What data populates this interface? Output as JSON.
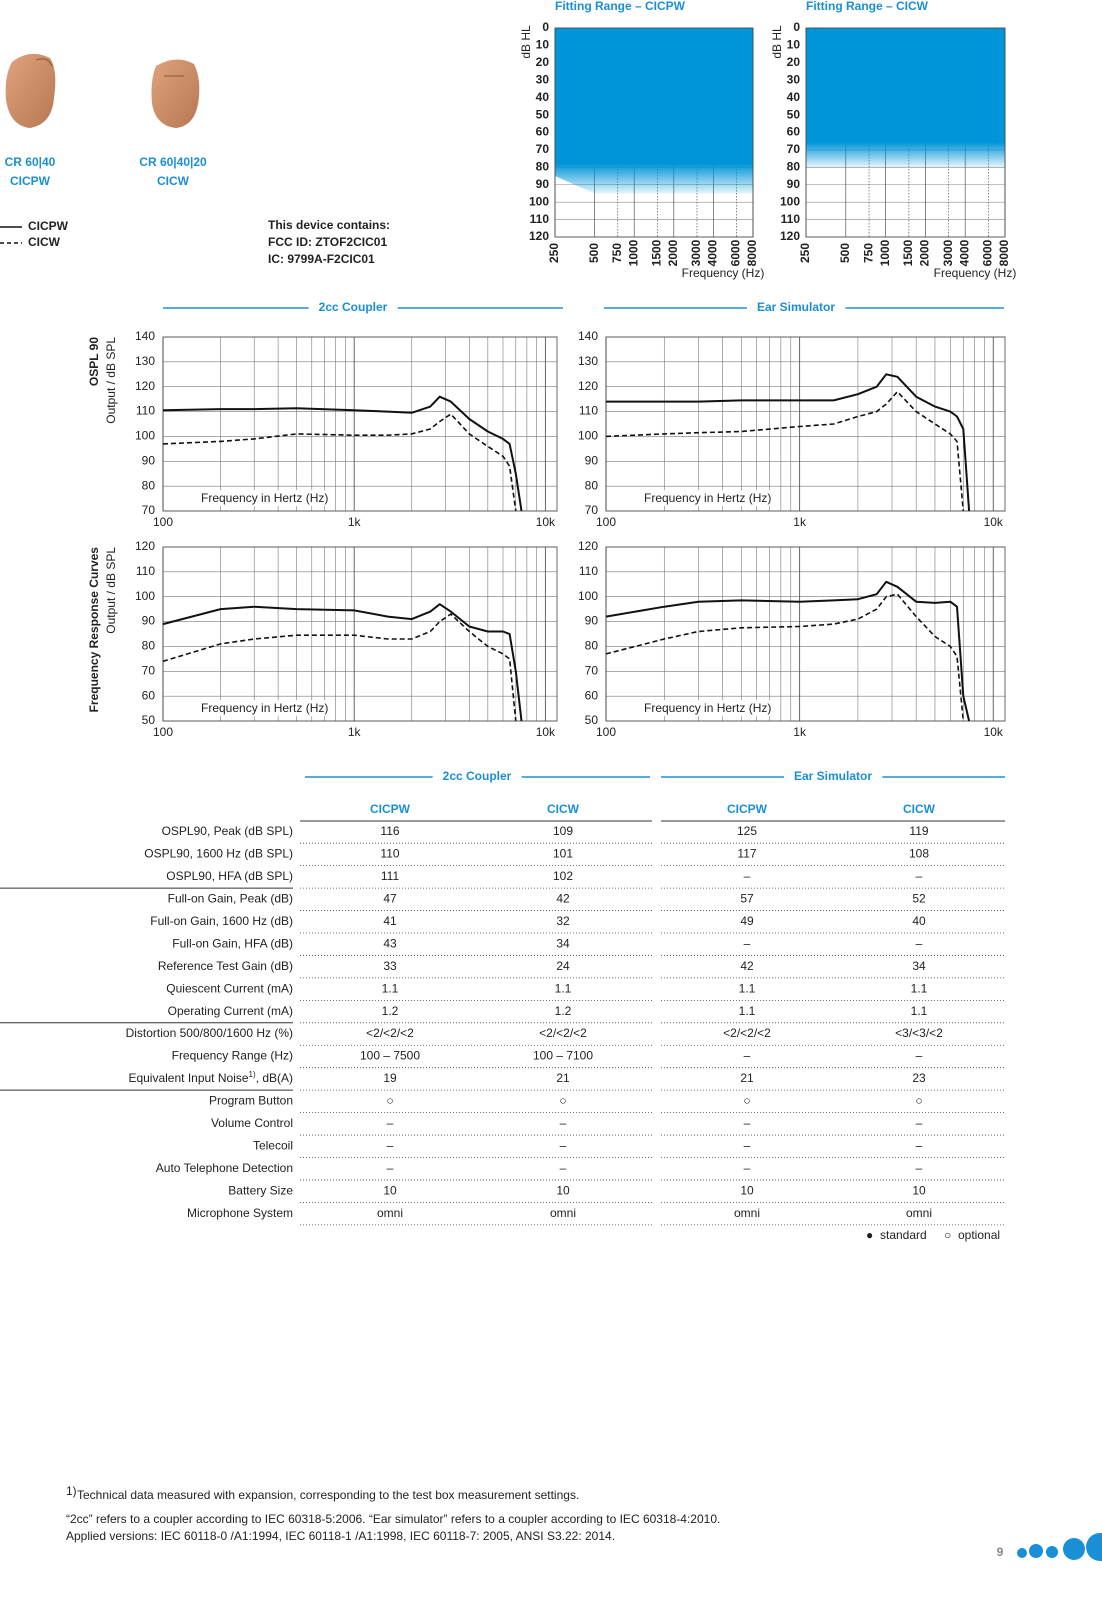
{
  "products": [
    {
      "model": "CR 60|40",
      "name": "CICPW"
    },
    {
      "model": "CR 60|40|20",
      "name": "CICW"
    }
  ],
  "legend": [
    {
      "name": "CICPW",
      "style": "solid"
    },
    {
      "name": "CICW",
      "style": "dashed"
    }
  ],
  "device_info": [
    "This device contains:",
    "FCC ID: ZTOF2CIC01",
    "IC: 9799A-F2CIC01"
  ],
  "curve_sections": [
    "2cc Coupler",
    "Ear Simulator"
  ],
  "curve_rows": [
    {
      "title": "OSPL 90",
      "axis": "Output / dB SPL"
    },
    {
      "title": "Frequency Response Curves",
      "axis": "Output / dB SPL"
    }
  ],
  "chart_data": [
    {
      "type": "area",
      "title": "Fitting Range – CICPW",
      "ylabel": "dB HL",
      "xlabel": "Frequency (Hz)",
      "xscale": "log",
      "y_inverted": true,
      "color": "#0095d9",
      "x": [
        250,
        500,
        750,
        1000,
        1500,
        2000,
        3000,
        4000,
        6000,
        8000
      ],
      "values": [
        85,
        95,
        95,
        95,
        95,
        95,
        95,
        95,
        95,
        95
      ],
      "xlim": [
        250,
        8000
      ],
      "xticks": [
        250,
        500,
        750,
        1000,
        1500,
        2000,
        3000,
        4000,
        6000,
        8000
      ],
      "ylim": [
        0,
        120
      ],
      "yticks": [
        0,
        10,
        20,
        30,
        40,
        50,
        60,
        70,
        80,
        90,
        100,
        110,
        120
      ],
      "grid": true
    },
    {
      "type": "area",
      "title": "Fitting Range – CICW",
      "ylabel": "dB HL",
      "xlabel": "Frequency (Hz)",
      "xscale": "log",
      "y_inverted": true,
      "color": "#0095d9",
      "x": [
        250,
        500,
        750,
        1000,
        1500,
        2000,
        3000,
        4000,
        6000,
        8000
      ],
      "values": [
        80,
        80,
        80,
        80,
        80,
        80,
        80,
        80,
        80,
        80
      ],
      "xlim": [
        250,
        8000
      ],
      "xticks": [
        250,
        500,
        750,
        1000,
        1500,
        2000,
        3000,
        4000,
        6000,
        8000
      ],
      "ylim": [
        0,
        120
      ],
      "yticks": [
        0,
        10,
        20,
        30,
        40,
        50,
        60,
        70,
        80,
        90,
        100,
        110,
        120
      ],
      "grid": true
    },
    {
      "type": "line",
      "xlabel": "Frequency in Hertz (Hz)",
      "xscale": "log",
      "grid": true,
      "x": [
        100,
        200,
        300,
        500,
        1000,
        1500,
        2000,
        2500,
        2800,
        3200,
        4000,
        5000,
        6000,
        6500,
        7000,
        7500
      ],
      "series": [
        {
          "style": "solid",
          "color": "#111111",
          "values": [
            110.5,
            111,
            111,
            111.3,
            110.5,
            110,
            109.5,
            112,
            116,
            114,
            107,
            102,
            99,
            97,
            85,
            70
          ]
        },
        {
          "style": "dashed",
          "color": "#111111",
          "values": [
            97,
            98,
            99,
            101,
            100.5,
            100.5,
            101,
            103,
            106,
            109,
            101,
            96,
            92,
            88,
            70,
            null
          ]
        }
      ],
      "xlim": [
        100,
        11500
      ],
      "xticks": [
        100,
        {
          "value": 1000,
          "label": "1k"
        },
        {
          "value": 10000,
          "label": "10k"
        }
      ],
      "ylim": [
        70,
        140
      ],
      "yticks": [
        70,
        80,
        90,
        100,
        110,
        120,
        130,
        140
      ]
    },
    {
      "type": "line",
      "xlabel": "Frequency in Hertz (Hz)",
      "xscale": "log",
      "grid": true,
      "x": [
        100,
        200,
        300,
        500,
        1000,
        1500,
        2000,
        2500,
        2800,
        3200,
        4000,
        5000,
        6000,
        6500,
        7000,
        7500
      ],
      "series": [
        {
          "style": "solid",
          "color": "#111111",
          "values": [
            114,
            114,
            114,
            114.5,
            114.5,
            114.5,
            117,
            120,
            125,
            124,
            116,
            112,
            110,
            108,
            103,
            70
          ]
        },
        {
          "style": "dashed",
          "color": "#111111",
          "values": [
            100,
            101,
            101.5,
            102,
            104,
            105,
            108,
            110,
            113,
            118,
            110,
            105,
            101,
            98,
            70,
            null
          ]
        }
      ],
      "xlim": [
        100,
        11500
      ],
      "xticks": [
        100,
        {
          "value": 1000,
          "label": "1k"
        },
        {
          "value": 10000,
          "label": "10k"
        }
      ],
      "ylim": [
        70,
        140
      ],
      "yticks": [
        70,
        80,
        90,
        100,
        110,
        120,
        130,
        140
      ]
    },
    {
      "type": "line",
      "xlabel": "Frequency in Hertz (Hz)",
      "xscale": "log",
      "grid": true,
      "x": [
        100,
        200,
        300,
        500,
        1000,
        1500,
        2000,
        2500,
        2800,
        3200,
        4000,
        5000,
        6000,
        6500,
        7000,
        7500
      ],
      "series": [
        {
          "style": "solid",
          "color": "#111111",
          "values": [
            89,
            95,
            96,
            95,
            94.5,
            92,
            91,
            94,
            97,
            94,
            88,
            86,
            86,
            85,
            70,
            50
          ]
        },
        {
          "style": "dashed",
          "color": "#111111",
          "values": [
            74,
            81,
            83,
            84.5,
            84.5,
            83,
            83,
            86,
            90,
            93,
            86,
            80,
            77,
            75,
            50,
            null
          ]
        }
      ],
      "xlim": [
        100,
        11500
      ],
      "xticks": [
        100,
        {
          "value": 1000,
          "label": "1k"
        },
        {
          "value": 10000,
          "label": "10k"
        }
      ],
      "ylim": [
        50,
        120
      ],
      "yticks": [
        50,
        60,
        70,
        80,
        90,
        100,
        110,
        120
      ]
    },
    {
      "type": "line",
      "xlabel": "Frequency in Hertz (Hz)",
      "xscale": "log",
      "grid": true,
      "x": [
        100,
        200,
        300,
        500,
        1000,
        1500,
        2000,
        2500,
        2800,
        3200,
        4000,
        5000,
        6000,
        6500,
        7000,
        7500
      ],
      "series": [
        {
          "style": "solid",
          "color": "#111111",
          "values": [
            92,
            96,
            98,
            98.5,
            98,
            98.5,
            99,
            101,
            106,
            104,
            98,
            97.5,
            98,
            96,
            60,
            50
          ]
        },
        {
          "style": "dashed",
          "color": "#111111",
          "values": [
            77,
            83,
            86,
            87.5,
            88,
            89,
            91,
            95,
            100,
            101,
            92,
            84,
            80,
            76,
            50,
            null
          ]
        }
      ],
      "xlim": [
        100,
        11500
      ],
      "xticks": [
        100,
        {
          "value": 1000,
          "label": "1k"
        },
        {
          "value": 10000,
          "label": "10k"
        }
      ],
      "ylim": [
        50,
        120
      ],
      "yticks": [
        50,
        60,
        70,
        80,
        90,
        100,
        110,
        120
      ]
    }
  ],
  "table": {
    "groups": [
      "2cc Coupler",
      "Ear Simulator"
    ],
    "columns": [
      "CICPW",
      "CICW",
      "CICPW",
      "CICW"
    ],
    "rows": [
      {
        "label": "OSPL90, Peak (dB SPL)",
        "values": [
          "116",
          "109",
          "125",
          "119"
        ]
      },
      {
        "label": "OSPL90, 1600 Hz (dB SPL)",
        "values": [
          "110",
          "101",
          "117",
          "108"
        ]
      },
      {
        "label": "OSPL90, HFA (dB SPL)",
        "values": [
          "111",
          "102",
          "–",
          "–"
        ]
      },
      {
        "label": "Full-on Gain, Peak (dB)",
        "values": [
          "47",
          "42",
          "57",
          "52"
        ]
      },
      {
        "label": "Full-on Gain, 1600 Hz (dB)",
        "values": [
          "41",
          "32",
          "49",
          "40"
        ]
      },
      {
        "label": "Full-on Gain, HFA (dB)",
        "values": [
          "43",
          "34",
          "–",
          "–"
        ]
      },
      {
        "label": "Reference Test Gain (dB)",
        "values": [
          "33",
          "24",
          "42",
          "34"
        ]
      },
      {
        "label": "Quiescent Current (mA)",
        "values": [
          "1.1",
          "1.1",
          "1.1",
          "1.1"
        ]
      },
      {
        "label": "Operating Current (mA)",
        "values": [
          "1.2",
          "1.2",
          "1.1",
          "1.1"
        ]
      },
      {
        "label": "Distortion 500/800/1600 Hz (%)",
        "values": [
          "<2/<2/<2",
          "<2/<2/<2",
          "<2/<2/<2",
          "<3/<3/<2"
        ]
      },
      {
        "label": "Frequency Range (Hz)",
        "values": [
          "100 – 7500",
          "100 – 7100",
          "–",
          "–"
        ]
      },
      {
        "label": "Equivalent Input Noise",
        "note": "1)",
        "label_end": ", dB(A)",
        "values": [
          "19",
          "21",
          "21",
          "23"
        ]
      },
      {
        "label": "Program Button",
        "values": [
          "○",
          "○",
          "○",
          "○"
        ]
      },
      {
        "label": "Volume Control",
        "values": [
          "–",
          "–",
          "–",
          "–"
        ]
      },
      {
        "label": "Telecoil",
        "values": [
          "–",
          "–",
          "–",
          "–"
        ]
      },
      {
        "label": "Auto Telephone Detection",
        "values": [
          "–",
          "–",
          "–",
          "–"
        ]
      },
      {
        "label": "Battery Size",
        "values": [
          "10",
          "10",
          "10",
          "10"
        ]
      },
      {
        "label": "Microphone System",
        "values": [
          "omni",
          "omni",
          "omni",
          "omni"
        ]
      }
    ]
  },
  "key": [
    {
      "symbol": "●",
      "label": "standard"
    },
    {
      "symbol": "○",
      "label": "optional"
    }
  ],
  "footnotes": {
    "note_mark": "1)",
    "note": "Technical data measured with expansion, corresponding to the test box measurement settings.",
    "lines": [
      "“2cc” refers to a coupler according to IEC 60318-5:2006. “Ear simulator” refers to a coupler according to IEC 60318-4:2010.",
      "Applied versions: IEC 60118-0 /A1:1994, IEC 60118-1 /A1:1998, IEC 60118-7: 2005, ANSI S3.22: 2014."
    ]
  },
  "page_number": "9"
}
